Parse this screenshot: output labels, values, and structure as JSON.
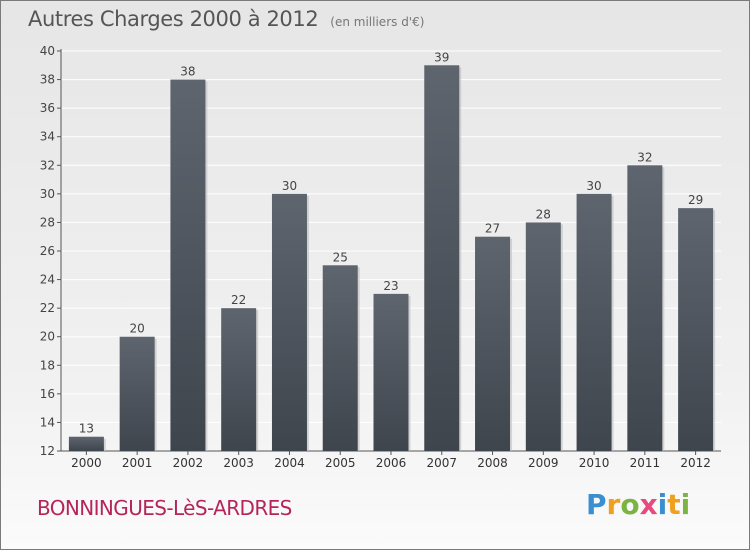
{
  "chart_data": {
    "type": "bar",
    "title": "Autres Charges 2000 à 2012",
    "subtitle": "(en milliers d'€)",
    "categories": [
      "2000",
      "2001",
      "2002",
      "2003",
      "2004",
      "2005",
      "2006",
      "2007",
      "2008",
      "2009",
      "2010",
      "2011",
      "2012"
    ],
    "values": [
      13,
      20,
      38,
      22,
      30,
      25,
      23,
      39,
      27,
      28,
      30,
      32,
      29
    ],
    "ylim": [
      12,
      40
    ],
    "yticks": [
      12,
      14,
      16,
      18,
      20,
      22,
      24,
      26,
      28,
      30,
      32,
      34,
      36,
      38,
      40
    ],
    "grid": true,
    "bar_color": "#3f454d",
    "bar_color_top": "#5e656e"
  },
  "footer": {
    "commune": "BONNINGUES-LèS-ARDRES",
    "brand_letters": [
      {
        "ch": "P",
        "color": "#3a8fd0"
      },
      {
        "ch": "r",
        "color": "#f0a020"
      },
      {
        "ch": "o",
        "color": "#7cb342"
      },
      {
        "ch": "x",
        "color": "#e84a7f"
      },
      {
        "ch": "i",
        "color": "#3a8fd0"
      },
      {
        "ch": "t",
        "color": "#f0a020"
      },
      {
        "ch": "i",
        "color": "#7cb342"
      }
    ]
  }
}
